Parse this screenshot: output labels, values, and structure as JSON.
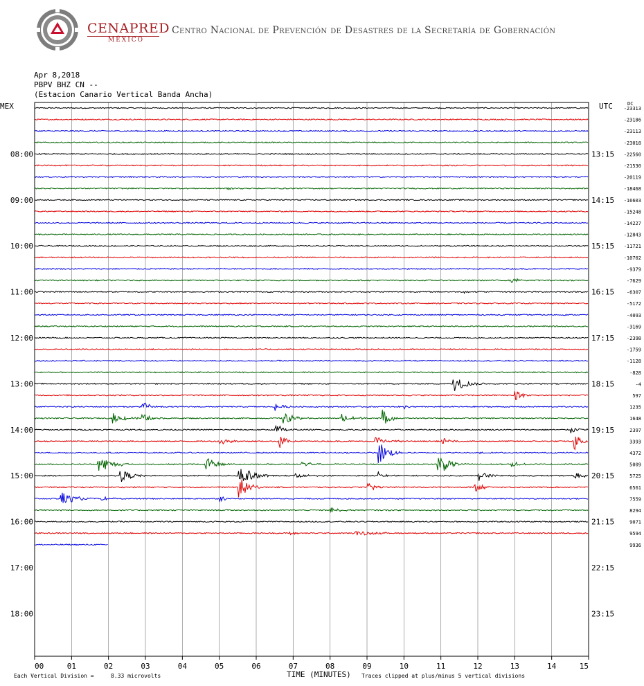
{
  "header": {
    "brand_name": "CENAPRED",
    "brand_sub": "MÉXICO",
    "agency": "Centro Nacional de Prevención de Desastres de la Secretaría de Gobernación"
  },
  "record": {
    "date": "Apr 8,2018",
    "channel": "PBPV BHZ CN --",
    "station": "(Estacion Canario Vertical Banda Ancha)"
  },
  "axes": {
    "left_title": "MEX",
    "right_title": "UTC",
    "dc_label": "DC",
    "left_ticks": [
      "08:00",
      "09:00",
      "10:00",
      "11:00",
      "12:00",
      "13:00",
      "14:00",
      "15:00",
      "16:00",
      "17:00",
      "18:00"
    ],
    "right_ticks": [
      "13:15",
      "14:15",
      "15:15",
      "16:15",
      "17:15",
      "18:15",
      "19:15",
      "20:15",
      "21:15",
      "22:15",
      "23:15"
    ],
    "x_ticks": [
      "00",
      "01",
      "02",
      "03",
      "04",
      "05",
      "06",
      "07",
      "08",
      "09",
      "10",
      "11",
      "12",
      "13",
      "14",
      "15"
    ],
    "x_title": "TIME (MINUTES)"
  },
  "footer": {
    "scale_label": "Each Vertical Division =",
    "scale_value": "8.33 microvolts",
    "clip_note": "Traces clipped at plus/minus 5 vertical divisions"
  },
  "colors": {
    "trace_cycle": [
      "#000000",
      "#e00000",
      "#0000e0",
      "#006400"
    ],
    "grid": "#888888",
    "brand": "#a61d22"
  },
  "chart_data": {
    "type": "line",
    "x_range_minutes": [
      0,
      15
    ],
    "traces_per_hour": 4,
    "trace_interval_minutes": 15,
    "dc_offsets": [
      "-23313",
      "-23186",
      "-23113",
      "-23018",
      "-22560",
      "-21530",
      "-20119",
      "-18468",
      "-16603",
      "-15248",
      "-14227",
      "-12843",
      "-11721",
      "-10702",
      "-9379",
      "-7629",
      "-6307",
      "-5172",
      "-4093",
      "-3169",
      "-2398",
      "-1759",
      "-1128",
      "-828",
      "-4",
      "597",
      "1235",
      "1648",
      "2397",
      "3393",
      "4372",
      "5009",
      "5725",
      "6561",
      "7559",
      "8294",
      "9071",
      "9594",
      "9936"
    ],
    "trace_end_minutes": [
      15,
      15,
      15,
      15,
      15,
      15,
      15,
      15,
      15,
      15,
      15,
      15,
      15,
      15,
      15,
      15,
      15,
      15,
      15,
      15,
      15,
      15,
      15,
      15,
      15,
      15,
      15,
      15,
      15,
      15,
      15,
      15,
      15,
      15,
      15,
      15,
      15,
      15,
      2
    ],
    "events": [
      {
        "trace": 7,
        "minute": 5.1,
        "amp": 2,
        "dur": 1.0
      },
      {
        "trace": 15,
        "minute": 12.9,
        "amp": 4,
        "dur": 0.7
      },
      {
        "trace": 16,
        "minute": 11.6,
        "amp": 2,
        "dur": 0.8
      },
      {
        "trace": 24,
        "minute": 11.3,
        "amp": 14,
        "dur": 0.9
      },
      {
        "trace": 25,
        "minute": 13.0,
        "amp": 10,
        "dur": 0.5
      },
      {
        "trace": 26,
        "minute": 2.9,
        "amp": 8,
        "dur": 0.6
      },
      {
        "trace": 26,
        "minute": 6.5,
        "amp": 6,
        "dur": 0.6
      },
      {
        "trace": 26,
        "minute": 10.0,
        "amp": 3,
        "dur": 0.4
      },
      {
        "trace": 27,
        "minute": 2.1,
        "amp": 8,
        "dur": 0.8
      },
      {
        "trace": 27,
        "minute": 2.9,
        "amp": 7,
        "dur": 0.6
      },
      {
        "trace": 27,
        "minute": 6.7,
        "amp": 10,
        "dur": 0.8
      },
      {
        "trace": 27,
        "minute": 8.3,
        "amp": 8,
        "dur": 0.8
      },
      {
        "trace": 27,
        "minute": 9.4,
        "amp": 16,
        "dur": 0.5
      },
      {
        "trace": 28,
        "minute": 6.5,
        "amp": 10,
        "dur": 0.6
      },
      {
        "trace": 28,
        "minute": 14.5,
        "amp": 6,
        "dur": 0.6
      },
      {
        "trace": 29,
        "minute": 5.0,
        "amp": 6,
        "dur": 0.7
      },
      {
        "trace": 29,
        "minute": 6.6,
        "amp": 18,
        "dur": 0.4
      },
      {
        "trace": 29,
        "minute": 9.2,
        "amp": 8,
        "dur": 0.8
      },
      {
        "trace": 29,
        "minute": 11.0,
        "amp": 6,
        "dur": 0.6
      },
      {
        "trace": 29,
        "minute": 14.6,
        "amp": 16,
        "dur": 0.4
      },
      {
        "trace": 30,
        "minute": 9.3,
        "amp": 18,
        "dur": 0.8
      },
      {
        "trace": 30,
        "minute": 12.0,
        "amp": 4,
        "dur": 0.4
      },
      {
        "trace": 31,
        "minute": 1.7,
        "amp": 14,
        "dur": 1.0
      },
      {
        "trace": 31,
        "minute": 4.6,
        "amp": 12,
        "dur": 0.8
      },
      {
        "trace": 31,
        "minute": 7.2,
        "amp": 6,
        "dur": 0.7
      },
      {
        "trace": 31,
        "minute": 10.9,
        "amp": 18,
        "dur": 0.8
      },
      {
        "trace": 31,
        "minute": 12.9,
        "amp": 5,
        "dur": 0.6
      },
      {
        "trace": 32,
        "minute": 2.3,
        "amp": 10,
        "dur": 0.8
      },
      {
        "trace": 32,
        "minute": 5.5,
        "amp": 18,
        "dur": 1.0
      },
      {
        "trace": 32,
        "minute": 7.0,
        "amp": 6,
        "dur": 0.7
      },
      {
        "trace": 32,
        "minute": 9.3,
        "amp": 6,
        "dur": 0.5
      },
      {
        "trace": 32,
        "minute": 12.0,
        "amp": 8,
        "dur": 0.8
      },
      {
        "trace": 32,
        "minute": 14.6,
        "amp": 7,
        "dur": 0.6
      },
      {
        "trace": 33,
        "minute": 5.5,
        "amp": 18,
        "dur": 0.7
      },
      {
        "trace": 33,
        "minute": 9.0,
        "amp": 6,
        "dur": 0.8
      },
      {
        "trace": 33,
        "minute": 11.9,
        "amp": 7,
        "dur": 0.7
      },
      {
        "trace": 34,
        "minute": 0.7,
        "amp": 12,
        "dur": 0.9
      },
      {
        "trace": 34,
        "minute": 1.8,
        "amp": 5,
        "dur": 0.5
      },
      {
        "trace": 34,
        "minute": 5.0,
        "amp": 5,
        "dur": 0.4
      },
      {
        "trace": 35,
        "minute": 8.0,
        "amp": 4,
        "dur": 0.8
      },
      {
        "trace": 37,
        "minute": 6.9,
        "amp": 4,
        "dur": 0.4
      },
      {
        "trace": 37,
        "minute": 8.6,
        "amp": 4,
        "dur": 1.6
      }
    ]
  }
}
